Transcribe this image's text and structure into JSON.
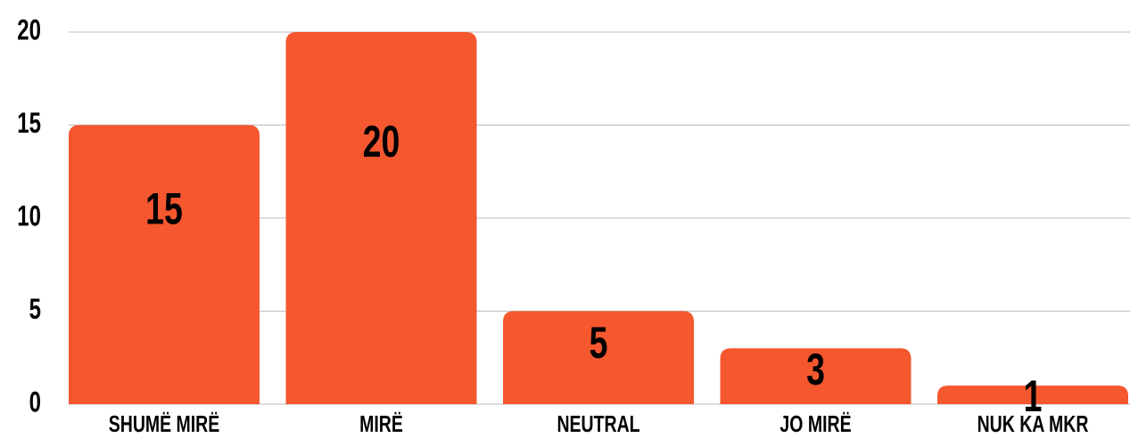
{
  "chart_data": {
    "type": "bar",
    "categories": [
      "SHUMË MIRË",
      "MIRË",
      "NEUTRAL",
      "JO MIRË",
      "NUK KA MKR"
    ],
    "values": [
      15,
      20,
      5,
      3,
      1
    ],
    "color": "#f5572f",
    "ylim": [
      0,
      20
    ],
    "yticks": [
      0,
      5,
      10,
      15,
      20
    ],
    "grid": true
  }
}
